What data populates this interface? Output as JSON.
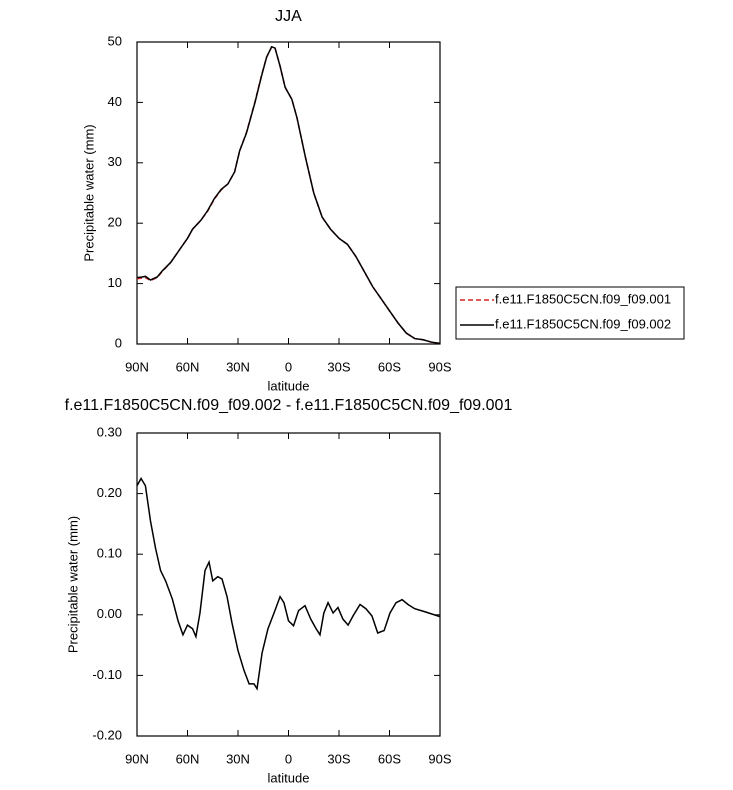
{
  "chart_data": [
    {
      "type": "line",
      "title": "JJA",
      "xlabel": "latitude",
      "ylabel": "Precipitable water (mm)",
      "xlim": [
        90,
        -90
      ],
      "xticks": [
        {
          "value": 90,
          "label": "90N"
        },
        {
          "value": 60,
          "label": "60N"
        },
        {
          "value": 30,
          "label": "30N"
        },
        0,
        {
          "value": -30,
          "label": "30S"
        },
        {
          "value": -60,
          "label": "60S"
        },
        {
          "value": -90,
          "label": "90S"
        }
      ],
      "ylim": [
        0,
        50
      ],
      "yticks": [
        0,
        10,
        20,
        30,
        40,
        50
      ],
      "x": [
        90,
        87,
        85,
        82,
        78,
        75,
        70,
        65,
        60,
        57,
        52,
        48,
        44,
        40,
        36,
        32,
        29,
        25,
        20,
        16,
        13,
        10,
        8,
        5,
        2,
        -2,
        -5,
        -10,
        -15,
        -20,
        -25,
        -30,
        -35,
        -40,
        -45,
        -50,
        -55,
        -60,
        -65,
        -70,
        -75,
        -80,
        -85,
        -90
      ],
      "series": [
        {
          "name": "f.e11.F1850C5CN.f09_f09.001",
          "color": "#d62020",
          "dash": true,
          "values": [
            10.8,
            10.9,
            11.0,
            10.5,
            11.0,
            12,
            13.5,
            15.5,
            17.5,
            19,
            20.5,
            22,
            24,
            25.5,
            26.5,
            28.5,
            32,
            35,
            40,
            44.5,
            47.5,
            49.2,
            49,
            46,
            42.5,
            40.5,
            37.5,
            31,
            25,
            21,
            19,
            17.5,
            16.5,
            14.5,
            12,
            9.5,
            7.5,
            5.5,
            3.5,
            1.8,
            0.9,
            0.7,
            0.3,
            0.1
          ]
        },
        {
          "name": "f.e11.F1850C5CN.f09_f09.002",
          "color": "#000000",
          "dash": false,
          "values": [
            11.0,
            11.1,
            11.2,
            10.6,
            11.1,
            12.1,
            13.5,
            15.5,
            17.5,
            19,
            20.5,
            22.1,
            24.1,
            25.6,
            26.5,
            28.5,
            32,
            34.9,
            39.9,
            44.4,
            47.5,
            49.2,
            49,
            46,
            42.5,
            40.5,
            37.5,
            31,
            25,
            21,
            19,
            17.5,
            16.5,
            14.5,
            12,
            9.5,
            7.5,
            5.5,
            3.5,
            1.8,
            0.9,
            0.7,
            0.3,
            0.1
          ]
        }
      ]
    },
    {
      "type": "line",
      "title": "f.e11.F1850C5CN.f09_f09.002 - f.e11.F1850C5CN.f09_f09.001",
      "xlabel": "latitude",
      "ylabel": "Precipitable water (mm)",
      "xlim": [
        90,
        -90
      ],
      "xticks": [
        {
          "value": 90,
          "label": "90N"
        },
        {
          "value": 60,
          "label": "60N"
        },
        {
          "value": 30,
          "label": "30N"
        },
        0,
        {
          "value": -30,
          "label": "30S"
        },
        {
          "value": -60,
          "label": "60S"
        },
        {
          "value": -90,
          "label": "90S"
        }
      ],
      "ylim": [
        -0.2,
        0.3
      ],
      "yticks": [
        {
          "value": -0.2,
          "label": "-0.20"
        },
        {
          "value": -0.1,
          "label": "-0.10"
        },
        {
          "value": 0,
          "label": "0.00"
        },
        {
          "value": 0.1,
          "label": "0.10"
        },
        {
          "value": 0.2,
          "label": "0.20"
        },
        {
          "value": 0.3,
          "label": "0.30"
        }
      ],
      "x": [
        90,
        87.6,
        85,
        82,
        79,
        76,
        73,
        69,
        65.6,
        62.7,
        60,
        57,
        55,
        52.6,
        49.6,
        47.2,
        45,
        42,
        39.5,
        36.5,
        33.6,
        30,
        26.4,
        23.4,
        20.5,
        18.7,
        15.7,
        12.2,
        8.6,
        5,
        2.7,
        0,
        -3,
        -6,
        -9.8,
        -13.2,
        -16.4,
        -18.7,
        -21,
        -23.5,
        -26.5,
        -29.4,
        -32.3,
        -35.4,
        -38.3,
        -42.5,
        -46,
        -49.6,
        -53,
        -56.8,
        -60.3,
        -63.9,
        -67.5,
        -71,
        -75,
        -81,
        -90
      ],
      "series": [
        {
          "name": "f.e11.F1850C5CN.f09_f09.002 - f.e11.F1850C5CN.f09_f09.001",
          "color": "#000000",
          "dash": false,
          "values": [
            0.213,
            0.225,
            0.213,
            0.155,
            0.11,
            0.073,
            0.056,
            0.026,
            -0.01,
            -0.033,
            -0.017,
            -0.023,
            -0.036,
            0.003,
            0.073,
            0.087,
            0.056,
            0.063,
            0.059,
            0.03,
            -0.013,
            -0.059,
            -0.092,
            -0.114,
            -0.114,
            -0.122,
            -0.063,
            -0.023,
            0.003,
            0.03,
            0.02,
            -0.01,
            -0.018,
            0.007,
            0.015,
            -0.007,
            -0.023,
            -0.033,
            0.003,
            0.02,
            0.003,
            0.012,
            -0.007,
            -0.017,
            -0.002,
            0.017,
            0.01,
            -0.002,
            -0.03,
            -0.026,
            0.003,
            0.02,
            0.025,
            0.017,
            0.01,
            0.005,
            -0.003
          ]
        }
      ]
    }
  ]
}
